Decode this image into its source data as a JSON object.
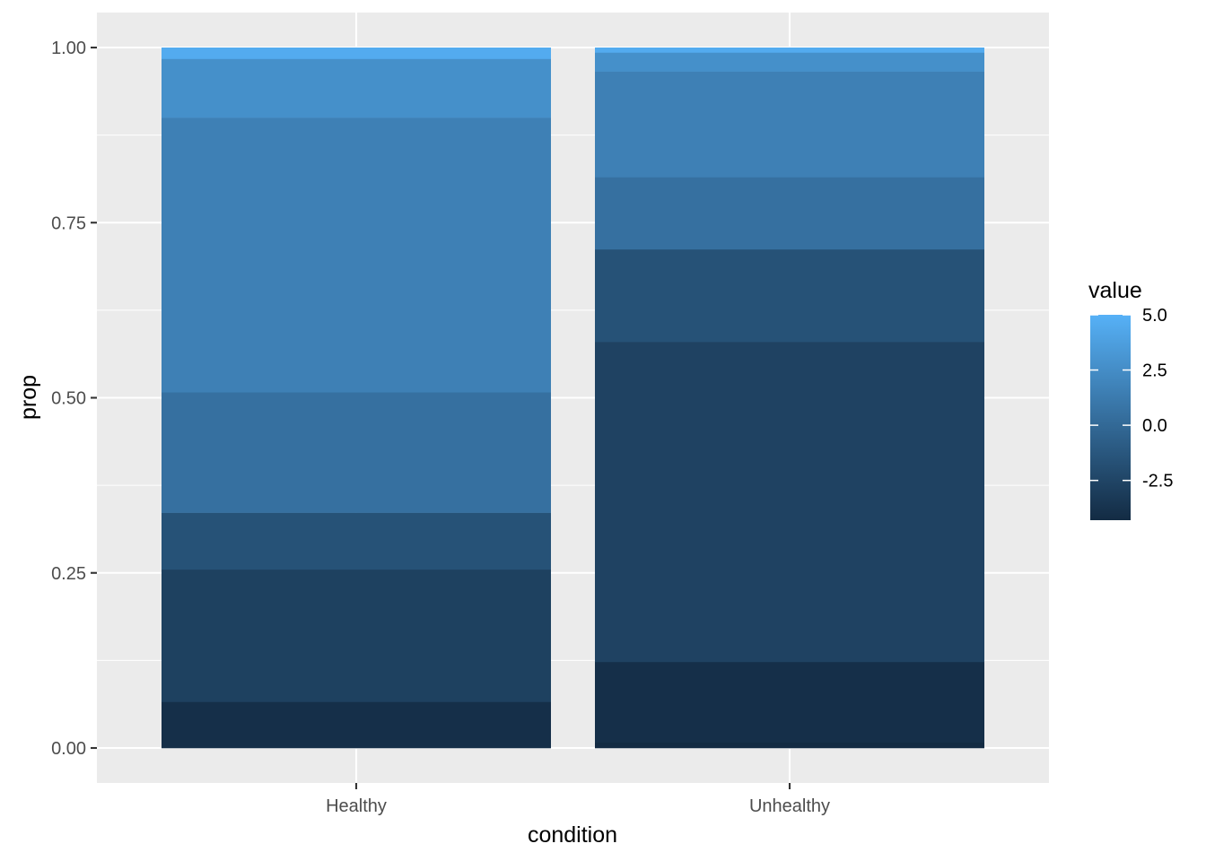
{
  "chart_data": {
    "type": "bar",
    "stacked": true,
    "xlabel": "condition",
    "ylabel": "prop",
    "ylim": [
      0,
      1
    ],
    "yticks": [
      "0.00",
      "0.25",
      "0.50",
      "0.75",
      "1.00"
    ],
    "categories": [
      "Healthy",
      "Unhealthy"
    ],
    "segments": {
      "Healthy": [
        {
          "prop": 0.066,
          "value": -4.0
        },
        {
          "prop": 0.189,
          "value": -2.8
        },
        {
          "prop": 0.081,
          "value": -1.6
        },
        {
          "prop": 0.172,
          "value": 0.5
        },
        {
          "prop": 0.392,
          "value": 1.6
        },
        {
          "prop": 0.084,
          "value": 2.7
        },
        {
          "prop": 0.016,
          "value": 4.6
        }
      ],
      "Unhealthy": [
        {
          "prop": 0.008,
          "value": -4.3
        },
        {
          "prop": 0.115,
          "value": -4.0
        },
        {
          "prop": 0.457,
          "value": -2.7
        },
        {
          "prop": 0.132,
          "value": -1.6
        },
        {
          "prop": 0.103,
          "value": 0.5
        },
        {
          "prop": 0.151,
          "value": 1.6
        },
        {
          "prop": 0.027,
          "value": 2.7
        },
        {
          "prop": 0.007,
          "value": 4.6
        }
      ]
    },
    "legend": {
      "title": "value",
      "position": "right",
      "labels": [
        "5.0",
        "2.5",
        "0.0",
        "-2.5"
      ],
      "breaks": [
        5.0,
        2.5,
        0.0,
        -2.5
      ],
      "range": [
        -4.3,
        5.0
      ],
      "low_color": "#132B43",
      "high_color": "#56B1F7"
    },
    "panel_background": "#EBEBEB",
    "grid": true
  }
}
